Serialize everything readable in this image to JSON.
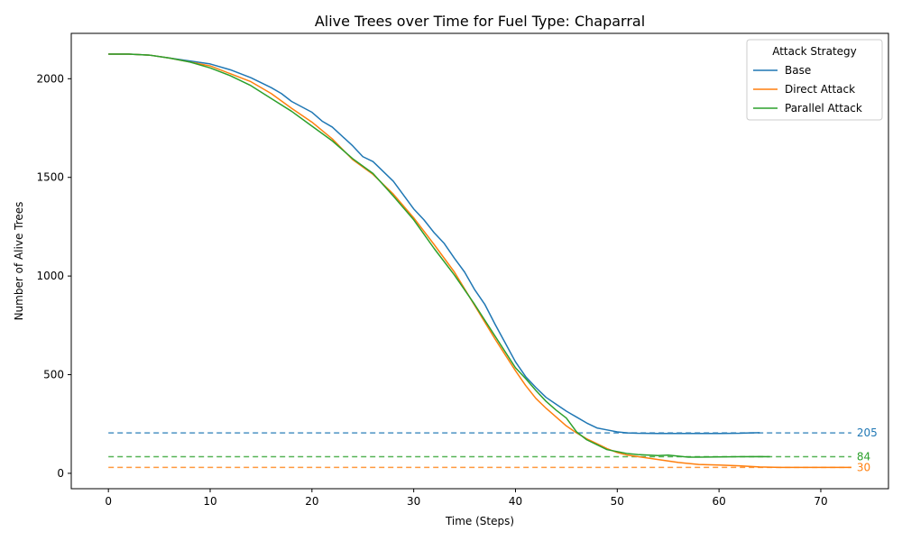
{
  "chart_data": {
    "type": "line",
    "title": "Alive Trees over Time for Fuel Type: Chaparral",
    "xlabel": "Time (Steps)",
    "ylabel": "Number of Alive Trees",
    "xlim": [
      -3.65,
      76.65
    ],
    "ylim": [
      -78,
      2230
    ],
    "xticks": [
      0,
      10,
      20,
      30,
      40,
      50,
      60,
      70
    ],
    "yticks": [
      0,
      500,
      1000,
      1500,
      2000
    ],
    "legend": {
      "title": "Attack Strategy",
      "placement": "top-right"
    },
    "series": [
      {
        "name": "Base",
        "color": "#1f77b4",
        "x": [
          0,
          2,
          4,
          6,
          8,
          10,
          12,
          14,
          16,
          17,
          18,
          20,
          21,
          22,
          24,
          25,
          26,
          28,
          30,
          31,
          32,
          33,
          34,
          35,
          36,
          37,
          38,
          39,
          40,
          41,
          42,
          43,
          44,
          45,
          46,
          47,
          48,
          49,
          50,
          51,
          52,
          54,
          56,
          58,
          60,
          62,
          63,
          64
        ],
        "y": [
          2125,
          2125,
          2120,
          2105,
          2090,
          2075,
          2045,
          2005,
          1955,
          1925,
          1885,
          1830,
          1785,
          1755,
          1660,
          1605,
          1580,
          1480,
          1340,
          1285,
          1220,
          1165,
          1090,
          1020,
          930,
          855,
          755,
          660,
          565,
          490,
          435,
          385,
          350,
          315,
          285,
          255,
          230,
          220,
          210,
          205,
          203,
          202,
          202,
          202,
          202,
          203,
          205,
          206
        ]
      },
      {
        "name": "Direct Attack",
        "color": "#ff7f0e",
        "x": [
          0,
          2,
          4,
          6,
          8,
          10,
          12,
          14,
          16,
          18,
          20,
          22,
          24,
          26,
          28,
          30,
          32,
          34,
          36,
          38,
          40,
          41,
          42,
          43,
          44,
          45,
          46,
          47,
          48,
          49,
          50,
          51,
          52,
          54,
          56,
          58,
          60,
          62,
          64,
          66,
          68,
          70,
          72,
          73
        ],
        "y": [
          2125,
          2125,
          2120,
          2105,
          2085,
          2065,
          2025,
          1985,
          1925,
          1850,
          1780,
          1695,
          1590,
          1515,
          1415,
          1295,
          1160,
          1020,
          850,
          680,
          520,
          445,
          380,
          330,
          285,
          240,
          205,
          175,
          150,
          125,
          105,
          92,
          85,
          70,
          55,
          45,
          42,
          38,
          32,
          30,
          30,
          30,
          30,
          30
        ]
      },
      {
        "name": "Parallel Attack",
        "color": "#2ca02c",
        "x": [
          0,
          2,
          4,
          6,
          8,
          10,
          12,
          14,
          16,
          18,
          20,
          22,
          24,
          26,
          28,
          30,
          32,
          34,
          36,
          38,
          40,
          41,
          42,
          43,
          44,
          45,
          46,
          47,
          48,
          49,
          50,
          51,
          52,
          54,
          55,
          56,
          57,
          58,
          60,
          62,
          64,
          65
        ],
        "y": [
          2125,
          2125,
          2120,
          2105,
          2085,
          2055,
          2015,
          1965,
          1900,
          1835,
          1760,
          1685,
          1595,
          1520,
          1405,
          1285,
          1140,
          1005,
          855,
          695,
          535,
          480,
          420,
          365,
          320,
          280,
          210,
          170,
          145,
          120,
          110,
          100,
          95,
          90,
          92,
          87,
          82,
          82,
          83,
          84,
          85,
          84
        ]
      }
    ],
    "reference_lines": [
      {
        "label": "205",
        "value": 205,
        "color": "#1f77b4"
      },
      {
        "label": "84",
        "value": 84,
        "color": "#2ca02c"
      },
      {
        "label": "30",
        "value": 30,
        "color": "#ff7f0e"
      }
    ],
    "grid": false
  }
}
